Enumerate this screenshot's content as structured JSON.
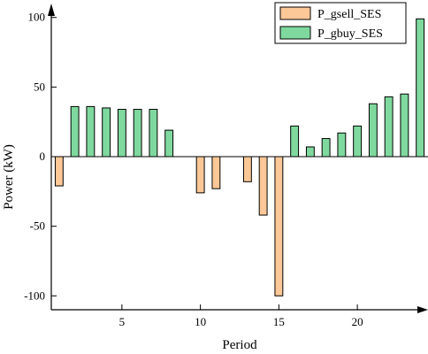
{
  "chart_data": {
    "type": "bar",
    "xlabel": "Period",
    "ylabel": "Power (kW)",
    "xlim": [
      0.5,
      24.5
    ],
    "ylim": [
      -110,
      110
    ],
    "xticks": [
      5,
      10,
      15,
      20
    ],
    "yticks": [
      -100,
      -50,
      0,
      50,
      100
    ],
    "legend_position": "top-right",
    "series": [
      {
        "name": "P_gsell_SES",
        "color": "#FDC897",
        "x": [
          1,
          10,
          11,
          13,
          14,
          15
        ],
        "values": [
          -21,
          -26,
          -23,
          -18,
          -42,
          -100
        ]
      },
      {
        "name": "P_gbuy_SES",
        "color": "#7FD99E",
        "x": [
          2,
          3,
          4,
          5,
          6,
          7,
          8,
          16,
          17,
          18,
          19,
          20,
          21,
          22,
          23,
          24
        ],
        "values": [
          36,
          36,
          35,
          34,
          34,
          34,
          19,
          22,
          7,
          13,
          17,
          22,
          38,
          43,
          45,
          99
        ]
      }
    ]
  }
}
